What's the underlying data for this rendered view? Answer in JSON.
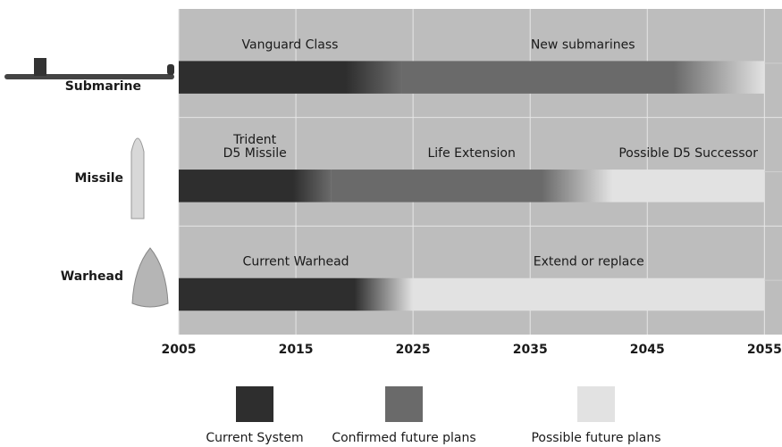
{
  "chart_data": {
    "type": "timeline",
    "xlim": [
      2005,
      2056.5
    ],
    "xticks": [
      2005,
      2015,
      2025,
      2035,
      2045,
      2055
    ],
    "grid": true,
    "series": [
      {
        "name": "Current System",
        "color": "#2e2e2e"
      },
      {
        "name": "Confirmed future plans",
        "color": "#6a6a6a"
      },
      {
        "name": "Possible future plans",
        "color": "#e2e2e2"
      }
    ],
    "rows": [
      {
        "name": "Submarine",
        "segments": [
          {
            "label": [
              "Vanguard Class"
            ],
            "start": 2005,
            "end": 2024,
            "series": 0
          },
          {
            "label": [
              "New submarines"
            ],
            "start": 2024,
            "end": 2055,
            "series": 1
          }
        ]
      },
      {
        "name": "Missile",
        "segments": [
          {
            "label": [
              "Trident",
              "D5 Missile"
            ],
            "start": 2005,
            "end": 2018,
            "series": 0
          },
          {
            "label": [
              "Life Extension"
            ],
            "start": 2018,
            "end": 2042,
            "series": 1
          },
          {
            "label": [
              "Possible D5 Successor"
            ],
            "start": 2042,
            "end": 2055,
            "series": 2
          }
        ]
      },
      {
        "name": "Warhead",
        "segments": [
          {
            "label": [
              "Current Warhead"
            ],
            "start": 2005,
            "end": 2025,
            "series": 0
          },
          {
            "label": [
              "Extend or replace"
            ],
            "start": 2025,
            "end": 2055,
            "series": 2
          }
        ]
      }
    ]
  }
}
